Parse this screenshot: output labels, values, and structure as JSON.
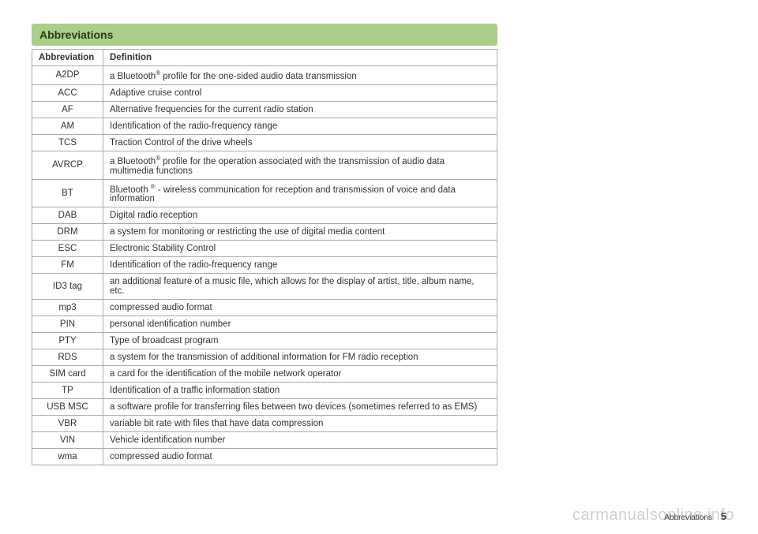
{
  "title": "Abbreviations",
  "columns": [
    "Abbreviation",
    "Definition"
  ],
  "rows": [
    {
      "abbr": "A2DP",
      "def_pre": "a Bluetooth",
      "sup": "®",
      "def_post": " profile for the one-sided audio data transmission"
    },
    {
      "abbr": "ACC",
      "def": "Adaptive cruise control"
    },
    {
      "abbr": "AF",
      "def": "Alternative frequencies for the current radio station"
    },
    {
      "abbr": "AM",
      "def": "Identification of the radio-frequency range"
    },
    {
      "abbr": "TCS",
      "def": "Traction Control of the drive wheels"
    },
    {
      "abbr": "AVRCP",
      "def_pre": "a Bluetooth",
      "sup": "®",
      "def_post": " profile for the operation associated with the transmission of audio data multimedia functions"
    },
    {
      "abbr": "BT",
      "def_pre": "Bluetooth ",
      "sup": "®",
      "def_post": " - wireless communication for reception and transmission of voice and data information"
    },
    {
      "abbr": "DAB",
      "def": "Digital radio reception"
    },
    {
      "abbr": "DRM",
      "def": "a system for monitoring or restricting the use of digital media content"
    },
    {
      "abbr": "ESC",
      "def": "Electronic Stability Control"
    },
    {
      "abbr": "FM",
      "def": "Identification of the radio-frequency range"
    },
    {
      "abbr": "ID3 tag",
      "def": "an additional feature of a music file, which allows for the display of artist, title, album name, etc."
    },
    {
      "abbr": "mp3",
      "def": "compressed audio format"
    },
    {
      "abbr": "PIN",
      "def": "personal identification number"
    },
    {
      "abbr": "PTY",
      "def": "Type of broadcast program"
    },
    {
      "abbr": "RDS",
      "def": "a system for the transmission of additional information for FM radio reception"
    },
    {
      "abbr": "SIM card",
      "def": "a card for the identification of the mobile network operator"
    },
    {
      "abbr": "TP",
      "def": "Identification of a traffic information station"
    },
    {
      "abbr": "USB MSC",
      "def": "a software profile for transferring files between two devices (sometimes referred to as EMS)"
    },
    {
      "abbr": "VBR",
      "def": "variable bit rate with files that have data compression"
    },
    {
      "abbr": "VIN",
      "def": "Vehicle identification number"
    },
    {
      "abbr": "wma",
      "def": "compressed audio format"
    }
  ],
  "footer_label": "Abbreviations",
  "page_number": "5",
  "watermark": "carmanualsonline.info",
  "colors": {
    "title_bg": "#a9cf8a",
    "title_text": "#2a3a1a",
    "border": "#aaa",
    "text": "#333"
  }
}
